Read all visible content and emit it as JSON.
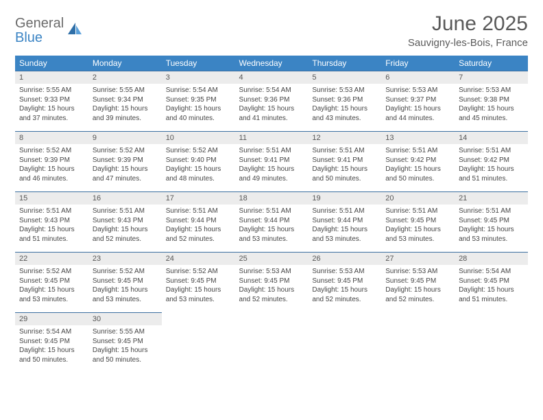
{
  "brand": {
    "part1": "General",
    "part2": "Blue"
  },
  "title": "June 2025",
  "subtitle": "Sauvigny-les-Bois, France",
  "colors": {
    "header_bg": "#3b84c4",
    "header_text": "#ffffff",
    "daynum_bg": "#ececec",
    "rule": "#3b6fa0",
    "text": "#454545",
    "title_text": "#595959"
  },
  "typography": {
    "title_fontsize": 30,
    "subtitle_fontsize": 15,
    "header_fontsize": 12,
    "daynum_fontsize": 11,
    "body_fontsize": 10
  },
  "layout": {
    "columns": 7,
    "rows": 5
  },
  "weekdays": [
    "Sunday",
    "Monday",
    "Tuesday",
    "Wednesday",
    "Thursday",
    "Friday",
    "Saturday"
  ],
  "days": [
    {
      "n": "1",
      "sunrise": "5:55 AM",
      "sunset": "9:33 PM",
      "daylight": "15 hours and 37 minutes."
    },
    {
      "n": "2",
      "sunrise": "5:55 AM",
      "sunset": "9:34 PM",
      "daylight": "15 hours and 39 minutes."
    },
    {
      "n": "3",
      "sunrise": "5:54 AM",
      "sunset": "9:35 PM",
      "daylight": "15 hours and 40 minutes."
    },
    {
      "n": "4",
      "sunrise": "5:54 AM",
      "sunset": "9:36 PM",
      "daylight": "15 hours and 41 minutes."
    },
    {
      "n": "5",
      "sunrise": "5:53 AM",
      "sunset": "9:36 PM",
      "daylight": "15 hours and 43 minutes."
    },
    {
      "n": "6",
      "sunrise": "5:53 AM",
      "sunset": "9:37 PM",
      "daylight": "15 hours and 44 minutes."
    },
    {
      "n": "7",
      "sunrise": "5:53 AM",
      "sunset": "9:38 PM",
      "daylight": "15 hours and 45 minutes."
    },
    {
      "n": "8",
      "sunrise": "5:52 AM",
      "sunset": "9:39 PM",
      "daylight": "15 hours and 46 minutes."
    },
    {
      "n": "9",
      "sunrise": "5:52 AM",
      "sunset": "9:39 PM",
      "daylight": "15 hours and 47 minutes."
    },
    {
      "n": "10",
      "sunrise": "5:52 AM",
      "sunset": "9:40 PM",
      "daylight": "15 hours and 48 minutes."
    },
    {
      "n": "11",
      "sunrise": "5:51 AM",
      "sunset": "9:41 PM",
      "daylight": "15 hours and 49 minutes."
    },
    {
      "n": "12",
      "sunrise": "5:51 AM",
      "sunset": "9:41 PM",
      "daylight": "15 hours and 50 minutes."
    },
    {
      "n": "13",
      "sunrise": "5:51 AM",
      "sunset": "9:42 PM",
      "daylight": "15 hours and 50 minutes."
    },
    {
      "n": "14",
      "sunrise": "5:51 AM",
      "sunset": "9:42 PM",
      "daylight": "15 hours and 51 minutes."
    },
    {
      "n": "15",
      "sunrise": "5:51 AM",
      "sunset": "9:43 PM",
      "daylight": "15 hours and 51 minutes."
    },
    {
      "n": "16",
      "sunrise": "5:51 AM",
      "sunset": "9:43 PM",
      "daylight": "15 hours and 52 minutes."
    },
    {
      "n": "17",
      "sunrise": "5:51 AM",
      "sunset": "9:44 PM",
      "daylight": "15 hours and 52 minutes."
    },
    {
      "n": "18",
      "sunrise": "5:51 AM",
      "sunset": "9:44 PM",
      "daylight": "15 hours and 53 minutes."
    },
    {
      "n": "19",
      "sunrise": "5:51 AM",
      "sunset": "9:44 PM",
      "daylight": "15 hours and 53 minutes."
    },
    {
      "n": "20",
      "sunrise": "5:51 AM",
      "sunset": "9:45 PM",
      "daylight": "15 hours and 53 minutes."
    },
    {
      "n": "21",
      "sunrise": "5:51 AM",
      "sunset": "9:45 PM",
      "daylight": "15 hours and 53 minutes."
    },
    {
      "n": "22",
      "sunrise": "5:52 AM",
      "sunset": "9:45 PM",
      "daylight": "15 hours and 53 minutes."
    },
    {
      "n": "23",
      "sunrise": "5:52 AM",
      "sunset": "9:45 PM",
      "daylight": "15 hours and 53 minutes."
    },
    {
      "n": "24",
      "sunrise": "5:52 AM",
      "sunset": "9:45 PM",
      "daylight": "15 hours and 53 minutes."
    },
    {
      "n": "25",
      "sunrise": "5:53 AM",
      "sunset": "9:45 PM",
      "daylight": "15 hours and 52 minutes."
    },
    {
      "n": "26",
      "sunrise": "5:53 AM",
      "sunset": "9:45 PM",
      "daylight": "15 hours and 52 minutes."
    },
    {
      "n": "27",
      "sunrise": "5:53 AM",
      "sunset": "9:45 PM",
      "daylight": "15 hours and 52 minutes."
    },
    {
      "n": "28",
      "sunrise": "5:54 AM",
      "sunset": "9:45 PM",
      "daylight": "15 hours and 51 minutes."
    },
    {
      "n": "29",
      "sunrise": "5:54 AM",
      "sunset": "9:45 PM",
      "daylight": "15 hours and 50 minutes."
    },
    {
      "n": "30",
      "sunrise": "5:55 AM",
      "sunset": "9:45 PM",
      "daylight": "15 hours and 50 minutes."
    }
  ],
  "labels": {
    "sunrise": "Sunrise: ",
    "sunset": "Sunset: ",
    "daylight": "Daylight: "
  }
}
